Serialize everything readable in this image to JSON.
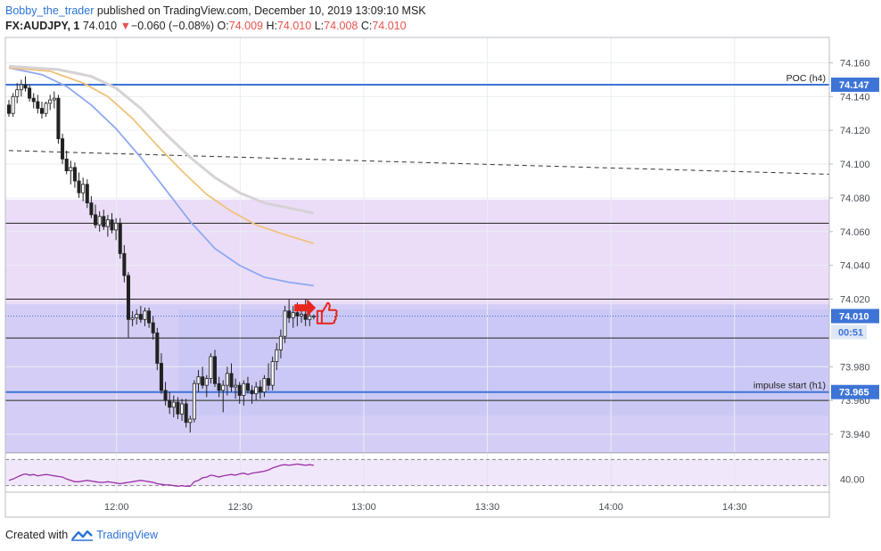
{
  "header": {
    "user": "Bobby_the_trader",
    "published_text": "published on TradingView.com, December 10, 2019 13:09:10 MSK",
    "symbol": "FX:AUDJPY, 1",
    "last_price": "74.010",
    "change_arrow": "▼",
    "change": "−0.060 (−0.08%)",
    "o_label": "O:",
    "o_value": "74.009",
    "h_label": "H:",
    "h_value": "74.010",
    "l_label": "L:",
    "l_value": "74.008",
    "c_label": "C:",
    "c_value": "74.010"
  },
  "footer": {
    "created_with": "Created with",
    "brand": "TradingView"
  },
  "colors": {
    "up": "#ffffff",
    "down": "#222222",
    "wick": "#222222",
    "ma_fast": "#8fa8f0",
    "ma_mid": "#f0c27a",
    "ma_slow": "#d6d2d6",
    "level_blue": "#3d74d6",
    "zone_purple": "#e7d7f7",
    "zone_blue": "#c4c5f5",
    "rsi": "#9a2fa8",
    "price_tag": "#3d74d6"
  },
  "chart_data": {
    "type": "candlestick",
    "symbol": "FX:AUDJPY",
    "timeframe": "1",
    "y_ticks": [
      "74.160",
      "74.140",
      "74.120",
      "74.100",
      "74.080",
      "74.060",
      "74.040",
      "74.020",
      "73.980",
      "73.960",
      "73.940"
    ],
    "x_ticks": [
      "12:00",
      "12:30",
      "13:00",
      "13:30",
      "14:00",
      "14:30"
    ],
    "ylim": [
      73.93,
      74.175
    ],
    "time_range": [
      "11:33",
      "14:53"
    ],
    "time_ticks_min": [
      720,
      750,
      780,
      810,
      840,
      870
    ],
    "candles": [
      {
        "o": 74.135,
        "h": 74.138,
        "l": 74.128,
        "c": 74.13
      },
      {
        "o": 74.13,
        "h": 74.142,
        "l": 74.128,
        "c": 74.14
      },
      {
        "o": 74.14,
        "h": 74.148,
        "l": 74.136,
        "c": 74.144
      },
      {
        "o": 74.144,
        "h": 74.15,
        "l": 74.14,
        "c": 74.147
      },
      {
        "o": 74.147,
        "h": 74.152,
        "l": 74.143,
        "c": 74.145
      },
      {
        "o": 74.145,
        "h": 74.147,
        "l": 74.137,
        "c": 74.139
      },
      {
        "o": 74.139,
        "h": 74.142,
        "l": 74.133,
        "c": 74.137
      },
      {
        "o": 74.137,
        "h": 74.141,
        "l": 74.13,
        "c": 74.133
      },
      {
        "o": 74.133,
        "h": 74.137,
        "l": 74.127,
        "c": 74.13
      },
      {
        "o": 74.13,
        "h": 74.137,
        "l": 74.128,
        "c": 74.136
      },
      {
        "o": 74.136,
        "h": 74.141,
        "l": 74.132,
        "c": 74.138
      },
      {
        "o": 74.138,
        "h": 74.143,
        "l": 74.133,
        "c": 74.139
      },
      {
        "o": 74.139,
        "h": 74.141,
        "l": 74.112,
        "c": 74.115
      },
      {
        "o": 74.115,
        "h": 74.118,
        "l": 74.1,
        "c": 74.103
      },
      {
        "o": 74.103,
        "h": 74.108,
        "l": 74.094,
        "c": 74.096
      },
      {
        "o": 74.096,
        "h": 74.102,
        "l": 74.088,
        "c": 74.098
      },
      {
        "o": 74.098,
        "h": 74.101,
        "l": 74.086,
        "c": 74.09
      },
      {
        "o": 74.09,
        "h": 74.095,
        "l": 74.08,
        "c": 74.083
      },
      {
        "o": 74.083,
        "h": 74.092,
        "l": 74.078,
        "c": 74.088
      },
      {
        "o": 74.088,
        "h": 74.091,
        "l": 74.074,
        "c": 74.077
      },
      {
        "o": 74.077,
        "h": 74.081,
        "l": 74.068,
        "c": 74.07
      },
      {
        "o": 74.07,
        "h": 74.076,
        "l": 74.062,
        "c": 74.064
      },
      {
        "o": 74.064,
        "h": 74.072,
        "l": 74.06,
        "c": 74.069
      },
      {
        "o": 74.069,
        "h": 74.073,
        "l": 74.061,
        "c": 74.063
      },
      {
        "o": 74.063,
        "h": 74.07,
        "l": 74.057,
        "c": 74.067
      },
      {
        "o": 74.067,
        "h": 74.071,
        "l": 74.059,
        "c": 74.061
      },
      {
        "o": 74.061,
        "h": 74.068,
        "l": 74.055,
        "c": 74.065
      },
      {
        "o": 74.065,
        "h": 74.068,
        "l": 74.044,
        "c": 74.047
      },
      {
        "o": 74.047,
        "h": 74.052,
        "l": 74.03,
        "c": 74.034
      },
      {
        "o": 74.034,
        "h": 74.036,
        "l": 73.997,
        "c": 74.008
      },
      {
        "o": 74.008,
        "h": 74.013,
        "l": 74.004,
        "c": 74.009
      },
      {
        "o": 74.009,
        "h": 74.014,
        "l": 74.005,
        "c": 74.011
      },
      {
        "o": 74.011,
        "h": 74.016,
        "l": 74.006,
        "c": 74.008
      },
      {
        "o": 74.008,
        "h": 74.015,
        "l": 74.004,
        "c": 74.013
      },
      {
        "o": 74.013,
        "h": 74.015,
        "l": 74.003,
        "c": 74.006
      },
      {
        "o": 74.006,
        "h": 74.01,
        "l": 73.996,
        "c": 74.0
      },
      {
        "o": 74.0,
        "h": 74.003,
        "l": 73.978,
        "c": 73.982
      },
      {
        "o": 73.982,
        "h": 73.988,
        "l": 73.964,
        "c": 73.966
      },
      {
        "o": 73.966,
        "h": 73.971,
        "l": 73.957,
        "c": 73.96
      },
      {
        "o": 73.96,
        "h": 73.965,
        "l": 73.952,
        "c": 73.956
      },
      {
        "o": 73.956,
        "h": 73.963,
        "l": 73.95,
        "c": 73.959
      },
      {
        "o": 73.959,
        "h": 73.962,
        "l": 73.949,
        "c": 73.952
      },
      {
        "o": 73.952,
        "h": 73.961,
        "l": 73.948,
        "c": 73.958
      },
      {
        "o": 73.958,
        "h": 73.961,
        "l": 73.944,
        "c": 73.947
      },
      {
        "o": 73.947,
        "h": 73.951,
        "l": 73.941,
        "c": 73.949
      },
      {
        "o": 73.949,
        "h": 73.972,
        "l": 73.947,
        "c": 73.97
      },
      {
        "o": 73.97,
        "h": 73.978,
        "l": 73.965,
        "c": 73.974
      },
      {
        "o": 73.974,
        "h": 73.98,
        "l": 73.967,
        "c": 73.969
      },
      {
        "o": 73.969,
        "h": 73.975,
        "l": 73.962,
        "c": 73.973
      },
      {
        "o": 73.973,
        "h": 73.988,
        "l": 73.97,
        "c": 73.986
      },
      {
        "o": 73.986,
        "h": 73.99,
        "l": 73.968,
        "c": 73.97
      },
      {
        "o": 73.97,
        "h": 73.974,
        "l": 73.962,
        "c": 73.966
      },
      {
        "o": 73.966,
        "h": 73.972,
        "l": 73.953,
        "c": 73.969
      },
      {
        "o": 73.969,
        "h": 73.98,
        "l": 73.963,
        "c": 73.976
      },
      {
        "o": 73.976,
        "h": 73.982,
        "l": 73.965,
        "c": 73.968
      },
      {
        "o": 73.968,
        "h": 73.973,
        "l": 73.961,
        "c": 73.969
      },
      {
        "o": 73.969,
        "h": 73.971,
        "l": 73.958,
        "c": 73.963
      },
      {
        "o": 73.963,
        "h": 73.972,
        "l": 73.957,
        "c": 73.97
      },
      {
        "o": 73.97,
        "h": 73.974,
        "l": 73.964,
        "c": 73.966
      },
      {
        "o": 73.966,
        "h": 73.969,
        "l": 73.958,
        "c": 73.964
      },
      {
        "o": 73.964,
        "h": 73.971,
        "l": 73.96,
        "c": 73.968
      },
      {
        "o": 73.968,
        "h": 73.972,
        "l": 73.961,
        "c": 73.965
      },
      {
        "o": 73.965,
        "h": 73.975,
        "l": 73.962,
        "c": 73.973
      },
      {
        "o": 73.973,
        "h": 73.982,
        "l": 73.966,
        "c": 73.969
      },
      {
        "o": 73.969,
        "h": 73.986,
        "l": 73.966,
        "c": 73.983
      },
      {
        "o": 73.983,
        "h": 73.994,
        "l": 73.978,
        "c": 73.99
      },
      {
        "o": 73.99,
        "h": 74.002,
        "l": 73.985,
        "c": 73.998
      },
      {
        "o": 73.998,
        "h": 74.016,
        "l": 73.994,
        "c": 74.013
      },
      {
        "o": 74.013,
        "h": 74.02,
        "l": 74.006,
        "c": 74.009
      },
      {
        "o": 74.009,
        "h": 74.016,
        "l": 74.003,
        "c": 74.012
      },
      {
        "o": 74.012,
        "h": 74.018,
        "l": 74.004,
        "c": 74.01
      },
      {
        "o": 74.01,
        "h": 74.014,
        "l": 74.006,
        "c": 74.011
      },
      {
        "o": 74.011,
        "h": 74.02,
        "l": 74.004,
        "c": 74.008
      },
      {
        "o": 74.008,
        "h": 74.012,
        "l": 74.004,
        "c": 74.01
      },
      {
        "o": 74.01,
        "h": 74.011,
        "l": 74.008,
        "c": 74.01
      }
    ],
    "moving_averages": [
      {
        "name": "",
        "color_key": "ma_fast",
        "points": [
          [
            0,
            74.157
          ],
          [
            8,
            74.153
          ],
          [
            14,
            74.146
          ],
          [
            20,
            74.135
          ],
          [
            26,
            74.121
          ],
          [
            32,
            74.104
          ],
          [
            38,
            74.085
          ],
          [
            44,
            74.066
          ],
          [
            50,
            74.05
          ],
          [
            56,
            74.04
          ],
          [
            62,
            74.033
          ],
          [
            68,
            74.03
          ],
          [
            74,
            74.028
          ]
        ]
      },
      {
        "name": "",
        "color_key": "ma_mid",
        "points": [
          [
            0,
            74.157
          ],
          [
            10,
            74.155
          ],
          [
            18,
            74.148
          ],
          [
            24,
            74.14
          ],
          [
            30,
            74.127
          ],
          [
            36,
            74.111
          ],
          [
            42,
            74.096
          ],
          [
            48,
            74.082
          ],
          [
            54,
            74.072
          ],
          [
            60,
            74.064
          ],
          [
            66,
            74.059
          ],
          [
            74,
            74.053
          ]
        ]
      },
      {
        "name": "",
        "color_key": "ma_slow",
        "points": [
          [
            0,
            74.158
          ],
          [
            12,
            74.156
          ],
          [
            20,
            74.152
          ],
          [
            26,
            74.145
          ],
          [
            32,
            74.133
          ],
          [
            38,
            74.118
          ],
          [
            44,
            74.104
          ],
          [
            50,
            74.092
          ],
          [
            56,
            74.083
          ],
          [
            62,
            74.077
          ],
          [
            68,
            74.074
          ],
          [
            74,
            74.071
          ]
        ]
      }
    ],
    "levels": [
      {
        "label": "POC (h4)",
        "value": 74.147,
        "tag": "74.147"
      },
      {
        "label": "impulse start (h1)",
        "value": 73.965,
        "tag": "73.965"
      }
    ],
    "black_levels": [
      74.065,
      74.02,
      73.997,
      73.96,
      73.929
    ],
    "dashed_trend": {
      "start": [
        0,
        74.108
      ],
      "end_time": "14:53",
      "end_value": 74.094
    },
    "zones": [
      {
        "kind": "purple",
        "from_time": "11:33",
        "to_time": "14:53",
        "top": 74.079,
        "bottom": 73.929
      },
      {
        "kind": "blue",
        "from_time": "11:33",
        "to_time": "14:53",
        "top": 74.017,
        "bottom": 73.929
      },
      {
        "kind": "blue",
        "from_time": "12:15",
        "to_time": "14:53",
        "top": 74.014,
        "bottom": 73.951
      }
    ],
    "current_price": {
      "value": 74.01,
      "tag": "74.010",
      "countdown": "00:51"
    },
    "rsi": {
      "tick": "40.00",
      "ylim": [
        20,
        80
      ],
      "upper_band": 70,
      "lower_band": 30,
      "values": [
        38,
        40,
        43,
        46,
        48,
        46,
        47,
        45,
        46,
        47,
        46,
        45,
        44,
        43,
        40,
        38,
        36,
        36,
        37,
        38,
        37,
        36,
        35,
        35,
        36,
        35,
        34,
        33,
        34,
        35,
        36,
        37,
        38,
        37,
        36,
        35,
        33,
        32,
        31,
        31,
        30,
        29,
        30,
        29,
        29,
        36,
        38,
        42,
        43,
        46,
        45,
        43,
        45,
        46,
        47,
        46,
        48,
        49,
        47,
        49,
        50,
        51,
        52,
        54,
        57,
        59,
        61,
        62,
        61,
        62,
        63,
        62,
        61,
        62,
        61
      ]
    },
    "annotations": [
      "red-arrow",
      "thumbs-up"
    ]
  }
}
